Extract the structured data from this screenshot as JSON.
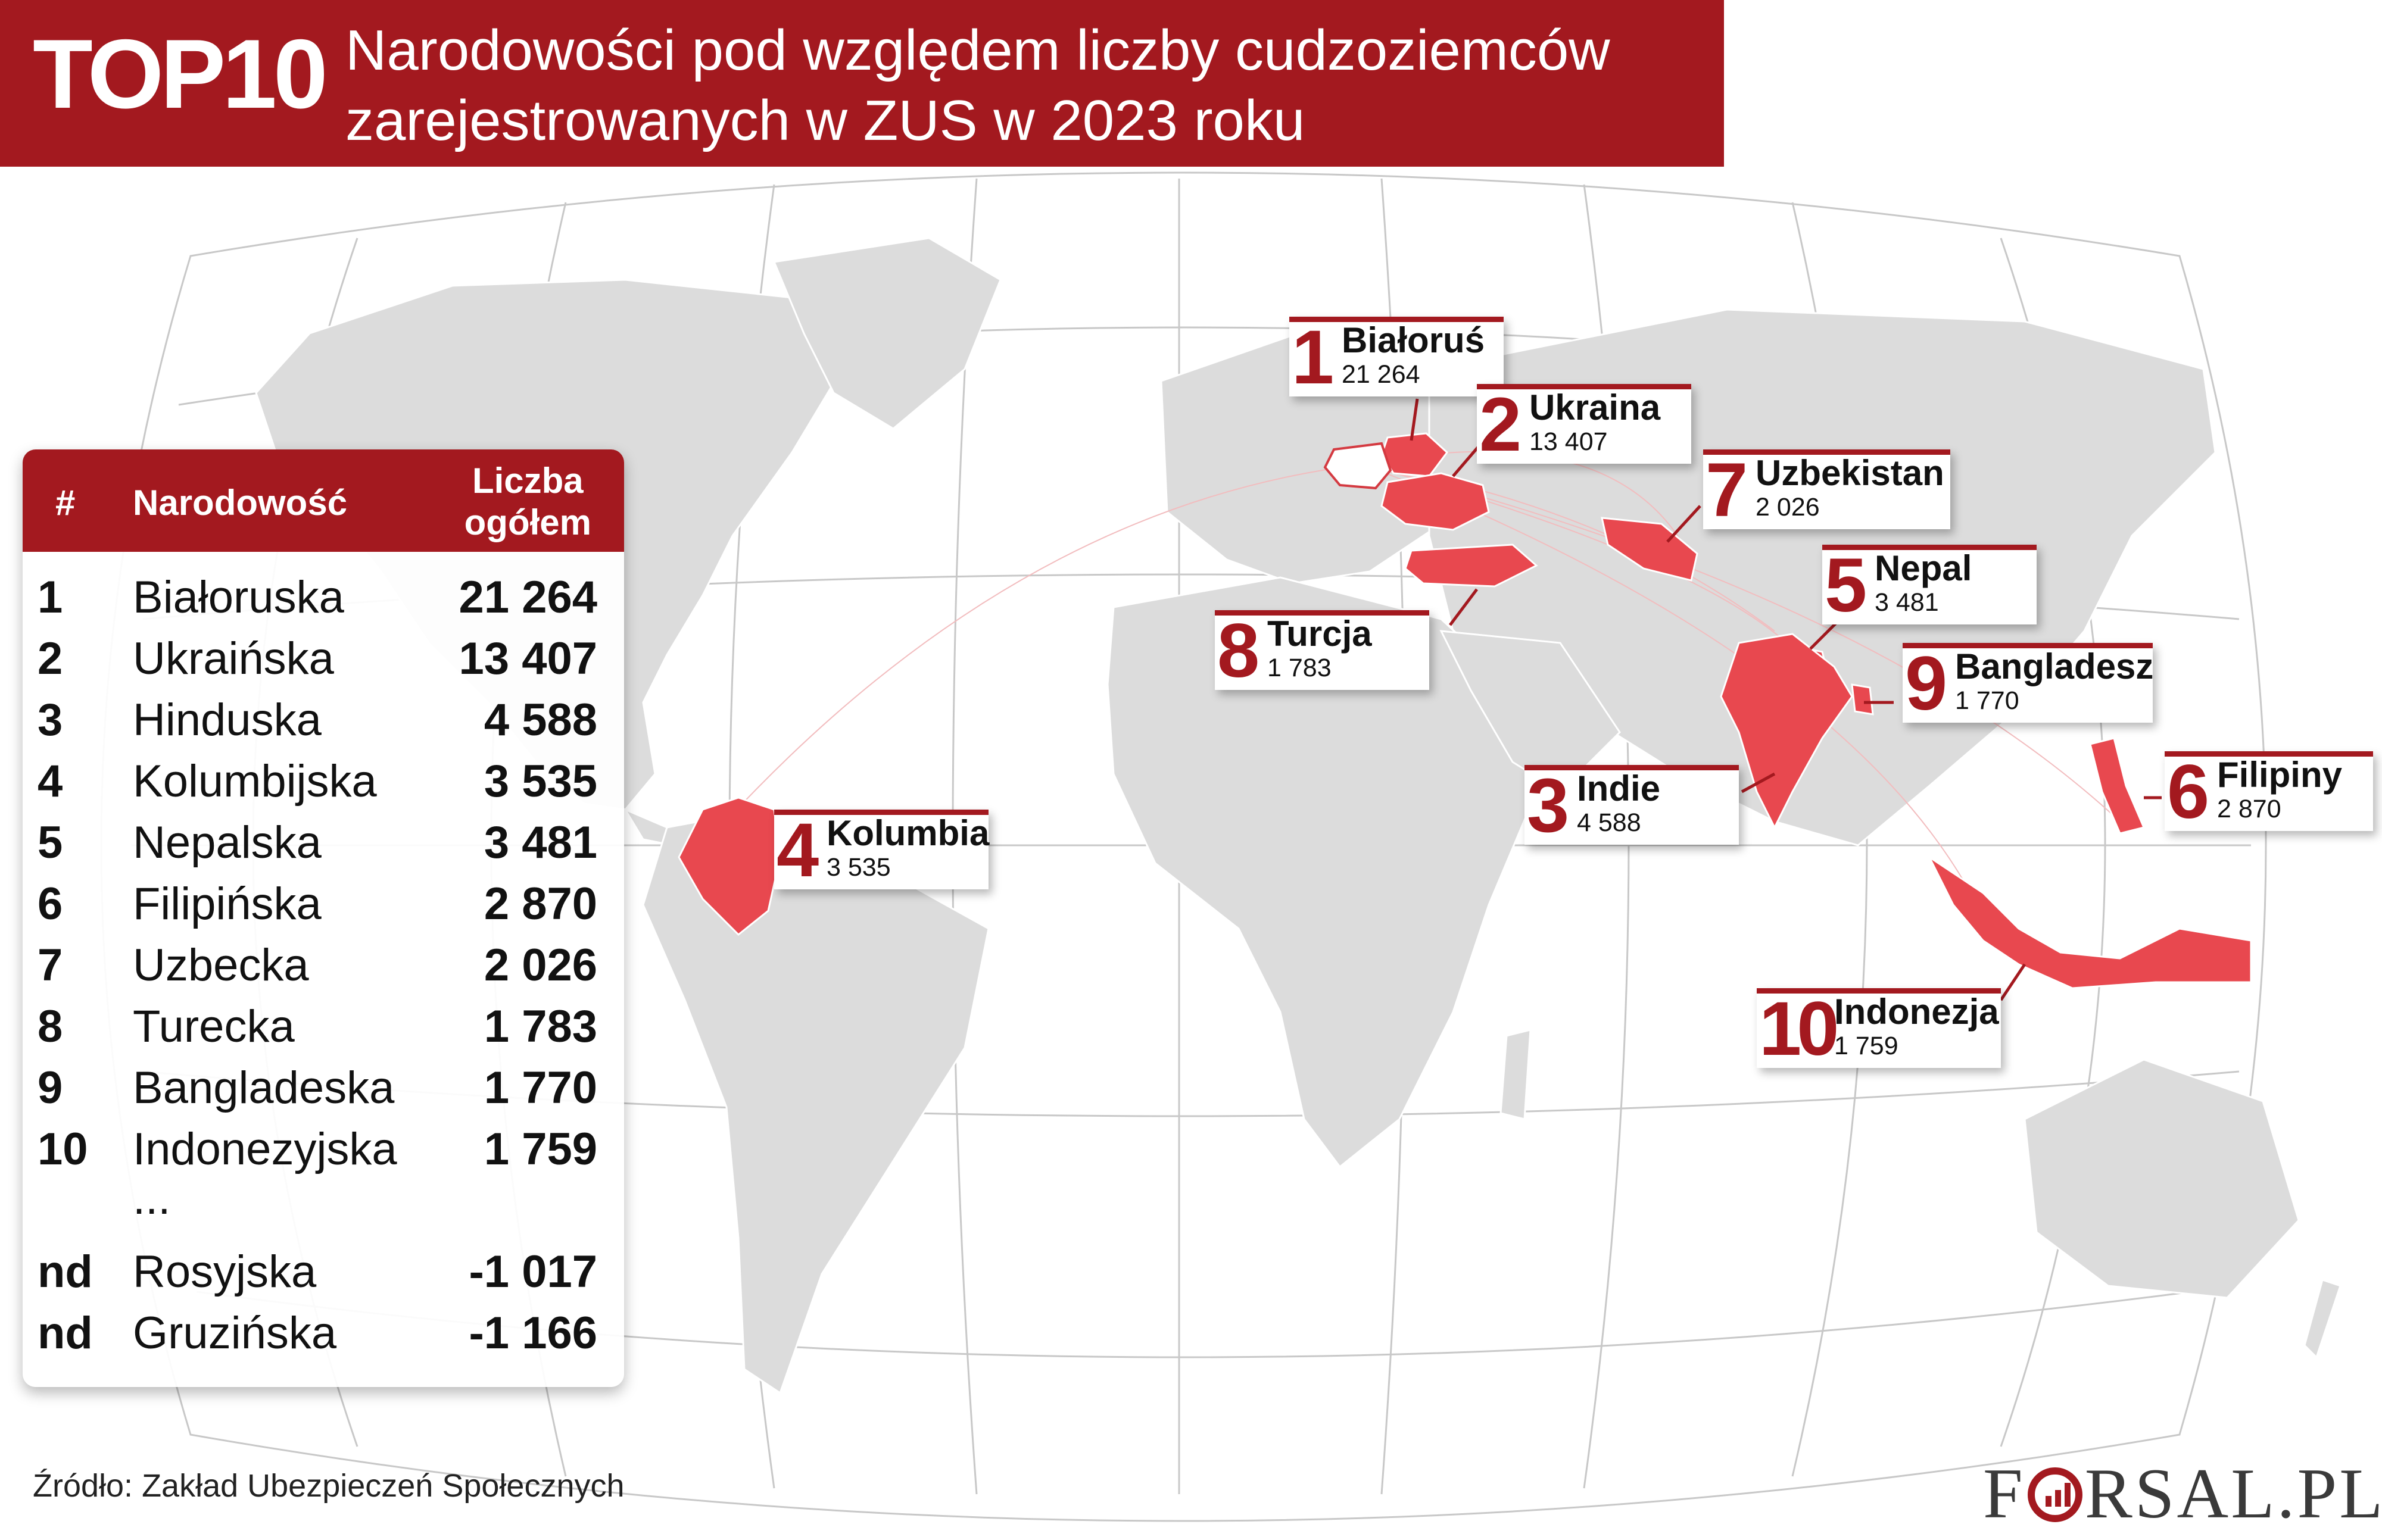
{
  "header": {
    "badge": "TOP10",
    "title_line1": "Narodowości pod względem liczby cudzoziemców",
    "title_line2": "zarejestrowanych w ZUS w 2023 roku"
  },
  "table": {
    "col_num": "#",
    "col_name": "Narodowość",
    "col_total_line1": "Liczba",
    "col_total_line2": "ogółem",
    "rows": [
      {
        "num": "1",
        "name": "Białoruska",
        "value": "21 264"
      },
      {
        "num": "2",
        "name": "Ukraińska",
        "value": "13 407"
      },
      {
        "num": "3",
        "name": "Hinduska",
        "value": "4 588"
      },
      {
        "num": "4",
        "name": "Kolumbijska",
        "value": "3 535"
      },
      {
        "num": "5",
        "name": "Nepalska",
        "value": "3 481"
      },
      {
        "num": "6",
        "name": "Filipińska",
        "value": "2 870"
      },
      {
        "num": "7",
        "name": "Uzbecka",
        "value": "2 026"
      },
      {
        "num": "8",
        "name": "Turecka",
        "value": "1 783"
      },
      {
        "num": "9",
        "name": "Bangladeska",
        "value": "1 770"
      },
      {
        "num": "10",
        "name": "Indonezyjska",
        "value": "1 759"
      }
    ],
    "ellipsis": "...",
    "extra_rows": [
      {
        "num": "nd",
        "name": "Rosyjska",
        "value": "-1 017"
      },
      {
        "num": "nd",
        "name": "Gruzińska",
        "value": "-1 166"
      }
    ]
  },
  "callouts": [
    {
      "rank": "1",
      "name": "Białoruś",
      "value": "21 264"
    },
    {
      "rank": "2",
      "name": "Ukraina",
      "value": "13 407"
    },
    {
      "rank": "7",
      "name": "Uzbekistan",
      "value": "2 026"
    },
    {
      "rank": "5",
      "name": "Nepal",
      "value": "3 481"
    },
    {
      "rank": "8",
      "name": "Turcja",
      "value": "1 783"
    },
    {
      "rank": "9",
      "name": "Bangladesz",
      "value": "1 770"
    },
    {
      "rank": "3",
      "name": "Indie",
      "value": "4 588"
    },
    {
      "rank": "6",
      "name": "Filipiny",
      "value": "2 870"
    },
    {
      "rank": "4",
      "name": "Kolumbia",
      "value": "3 535"
    },
    {
      "rank": "10",
      "name": "Indonezja",
      "value": "1 759"
    }
  ],
  "footer": {
    "source": "Źródło: Zakład Ubezpieczeń Społecznych",
    "logo_left": "F",
    "logo_right": "RSAL.PL"
  },
  "colors": {
    "accent": "#a3191f",
    "highlight_country": "#e8484f",
    "poland": "#ffffff",
    "land": "#dcdcdc",
    "graticule": "#c8c8c8"
  }
}
